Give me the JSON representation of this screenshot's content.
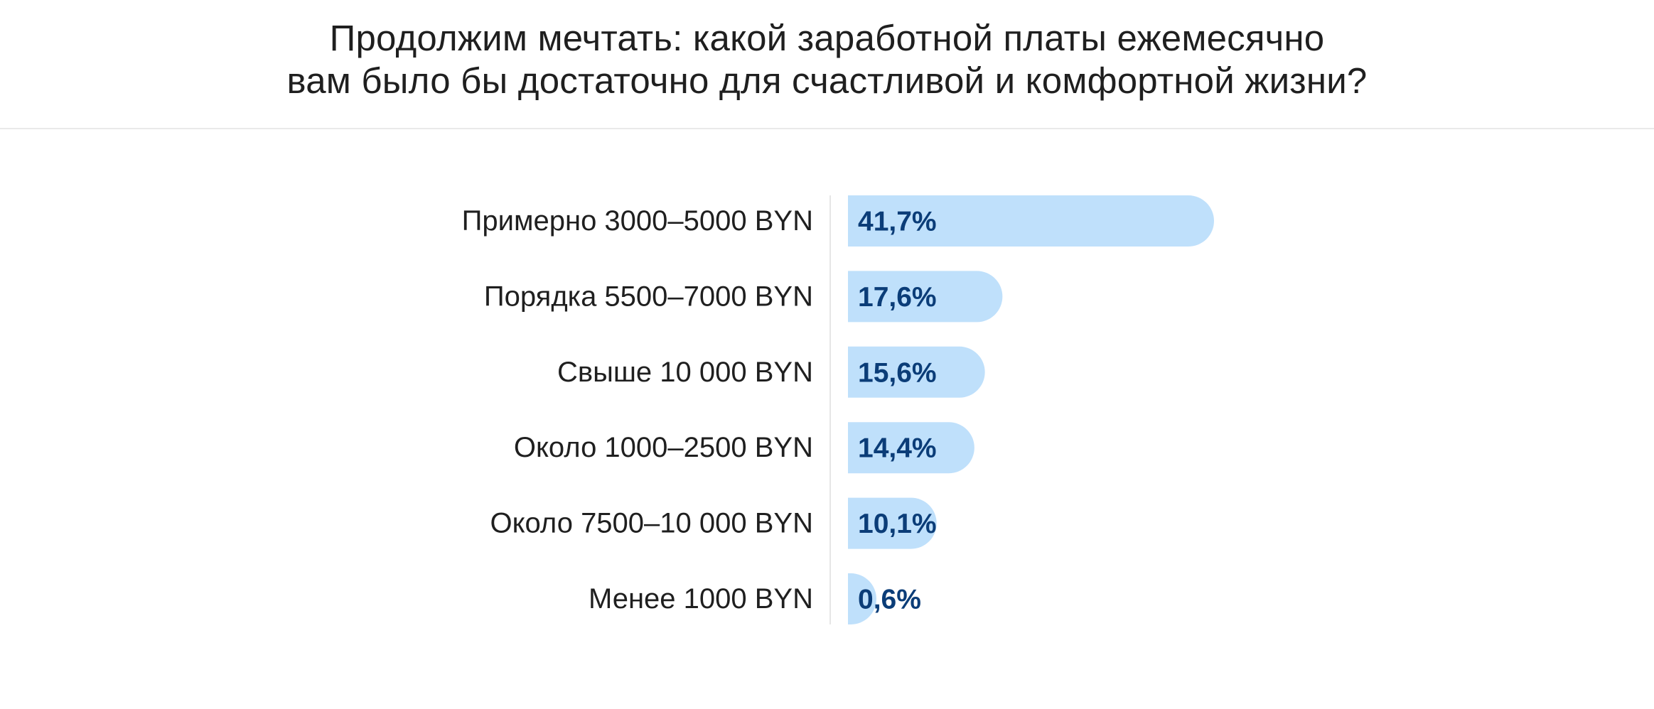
{
  "header": {
    "title_line1": "Продолжим мечтать: какой заработной платы ежемесячно",
    "title_line2": "вам было бы достаточно для счастливой и комфортной жизни?"
  },
  "chart_data": {
    "type": "bar",
    "orientation": "horizontal",
    "title": "Продолжим мечтать: какой заработной платы ежемесячно вам было бы достаточно для счастливой и комфортной жизни?",
    "categories": [
      "Примерно 3000–5000 BYN",
      "Порядка 5500–7000 BYN",
      "Свыше 10 000 BYN",
      "Около 1000–2500 BYN",
      "Около 7500–10 000 BYN",
      "Менее 1000 BYN"
    ],
    "values": [
      41.7,
      17.6,
      15.6,
      14.4,
      10.1,
      0.6
    ],
    "labels": [
      "41,7%",
      "17,6%",
      "15,6%",
      "14,4%",
      "10,1%",
      "0,6%"
    ],
    "unit": "%",
    "xlim": [
      0,
      41.7
    ],
    "grid": false,
    "legend": "none",
    "colors": {
      "bar": "#bfe0fb",
      "value_text": "#0b3d78",
      "category_text": "#1f1f1f",
      "axis": "#e6e6e6"
    }
  }
}
